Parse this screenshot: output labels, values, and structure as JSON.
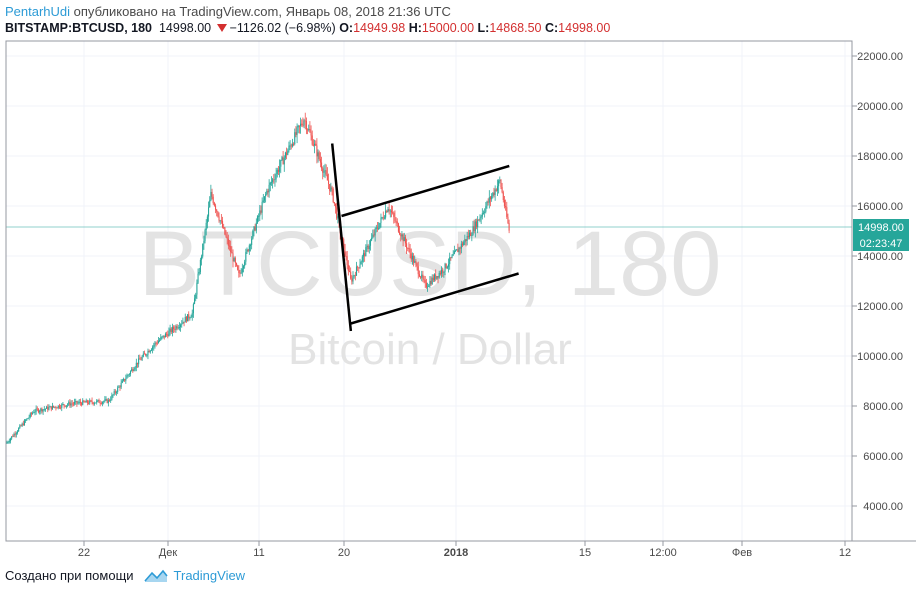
{
  "header": {
    "user": "PentarhUdi",
    "published": " опубликовано на TradingView.com, Январь 08, 2018 21:36 UTC",
    "symbol": "BITSTAMP:BTCUSD, 180",
    "last": "14998.00",
    "change": "−1126.02 (−6.98%)",
    "o_label": "O:",
    "o_value": "14949.98",
    "h_label": "H:",
    "h_value": "15000.00",
    "l_label": "L:",
    "l_value": "14868.50",
    "c_label": "C:",
    "c_value": "14998.00"
  },
  "watermark": {
    "main": "BTCUSD, 180",
    "sub": "Bitcoin / Dollar"
  },
  "price_badges": {
    "last_price": "14998.00",
    "countdown": "02:23:47"
  },
  "footer": {
    "created_with": "Создано при помощи",
    "brand": "TradingView"
  },
  "colors": {
    "up": "#26a69a",
    "down": "#ef5350",
    "badge": "#26a69a",
    "brand": "#2d9bd6"
  },
  "chart_data": {
    "type": "candlestick",
    "symbol": "BITSTAMP:BTCUSD",
    "interval": "180",
    "ylim": [
      2600,
      22600
    ],
    "y_ticks": [
      "22000.00",
      "20000.00",
      "18000.00",
      "16000.00",
      "14000.00",
      "12000.00",
      "10000.00",
      "8000.00",
      "6000.00",
      "4000.00"
    ],
    "x_ticks": [
      "22",
      "Дек",
      "11",
      "20",
      "2018",
      "15",
      "12:00",
      "Фев",
      "12"
    ],
    "price_path_approx": [
      [
        "Nov 15",
        6500
      ],
      [
        "Nov 18",
        7800
      ],
      [
        "Nov 22",
        8100
      ],
      [
        "Nov 26",
        8200
      ],
      [
        "Nov 29",
        9700
      ],
      [
        "Dec 1",
        10500
      ],
      [
        "Dec 5",
        11700
      ],
      [
        "Dec 7",
        16500
      ],
      [
        "Dec 10",
        13200
      ],
      [
        "Dec 13",
        16600
      ],
      [
        "Dec 17",
        19500
      ],
      [
        "Dec 20",
        16500
      ],
      [
        "Dec 22",
        13000
      ],
      [
        "Dec 26",
        16000
      ],
      [
        "Dec 30",
        12800
      ],
      [
        "Jan 1",
        13500
      ],
      [
        "Jan 4",
        15000
      ],
      [
        "Jan 7",
        17000
      ],
      [
        "Jan 8",
        14998
      ]
    ],
    "trend_lines": [
      {
        "from": [
          "Dec 20",
          18500
        ],
        "to": [
          "Dec 22",
          11000
        ]
      },
      {
        "from": [
          "Dec 21",
          15600
        ],
        "to": [
          "Jan 8",
          17600
        ]
      },
      {
        "from": [
          "Dec 22",
          11300
        ],
        "to": [
          "Jan 9",
          13300
        ]
      }
    ],
    "last_price": 14998
  }
}
